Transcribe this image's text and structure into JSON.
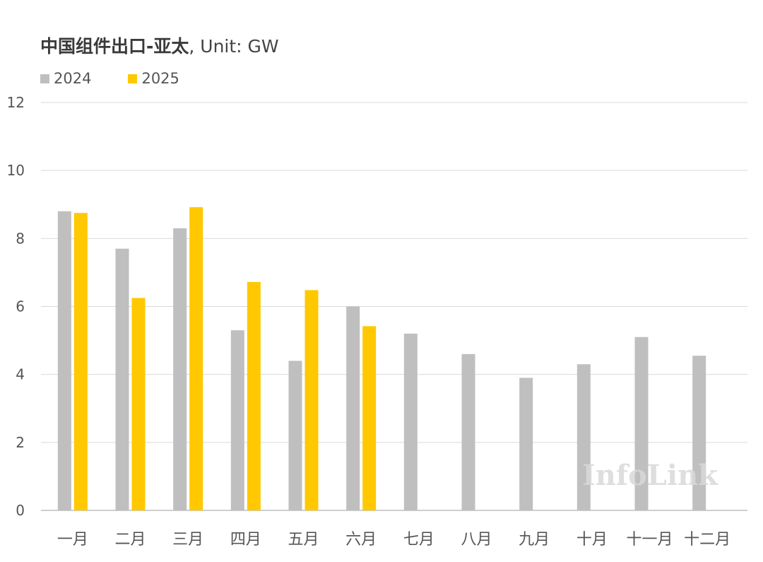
{
  "title": "中国组件出口-亚太",
  "unit_label": ", Unit: GW",
  "watermark": "InfoLink",
  "colors": {
    "s2024": "#BFBFBF",
    "s2025": "#FFC800",
    "grid": "#D9D9D9",
    "axis": "#BFBFBF",
    "text": "#555555"
  },
  "chart_data": {
    "type": "bar",
    "title": "中国组件出口-亚太, Unit: GW",
    "categories": [
      "一月",
      "二月",
      "三月",
      "四月",
      "五月",
      "六月",
      "七月",
      "八月",
      "九月",
      "十月",
      "十一月",
      "十二月"
    ],
    "series": [
      {
        "name": "2024",
        "values": [
          8.8,
          7.7,
          8.3,
          5.3,
          4.4,
          6.0,
          5.2,
          4.6,
          3.9,
          4.3,
          5.1,
          4.55
        ]
      },
      {
        "name": "2025",
        "values": [
          8.75,
          6.25,
          8.92,
          6.72,
          6.48,
          5.42,
          null,
          null,
          null,
          null,
          null,
          null
        ]
      }
    ],
    "ylim": [
      0,
      12
    ],
    "yticks": [
      0,
      2,
      4,
      6,
      8,
      10,
      12
    ],
    "grid": true,
    "legend": "top-left"
  }
}
